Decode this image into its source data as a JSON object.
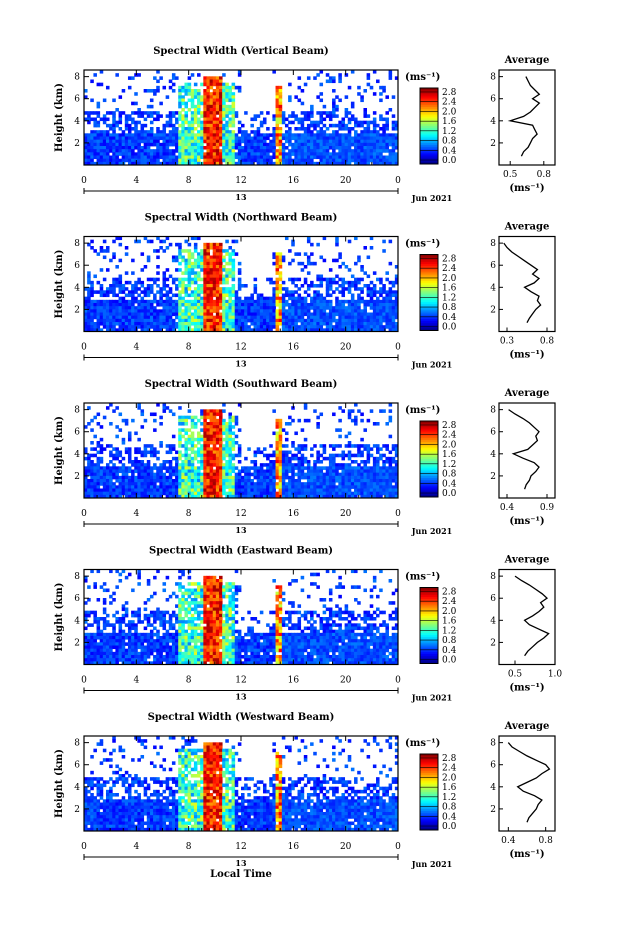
{
  "chart_data": [
    {
      "type": "heatmap",
      "title": "Spectral Width (Vertical Beam)",
      "ylabel": "Height (km)",
      "unit_label": "(ms⁻¹)",
      "xticks": [
        "0",
        "4",
        "8",
        "12",
        "16",
        "20",
        "0"
      ],
      "day_label": "13",
      "date_label": "Jun 2021",
      "colorbar_ticks": [
        "2.8",
        "2.4",
        "2.0",
        "1.6",
        "1.2",
        "0.8",
        "0.4",
        "0.0"
      ],
      "profile": {
        "title": "Average",
        "xlabel": "(ms⁻¹)",
        "xticks": [
          "0.5",
          "0.8"
        ],
        "xlim": [
          0.4,
          0.9
        ],
        "yticks": [
          "2",
          "4",
          "6",
          "8"
        ],
        "height_km": [
          0.8,
          1.2,
          1.6,
          2.0,
          2.4,
          2.8,
          3.2,
          3.6,
          4.0,
          4.4,
          4.8,
          5.2,
          5.6,
          6.0,
          6.4,
          6.8,
          7.2,
          7.6,
          8.0
        ],
        "values": [
          0.6,
          0.62,
          0.66,
          0.68,
          0.7,
          0.74,
          0.72,
          0.7,
          0.5,
          0.62,
          0.68,
          0.72,
          0.76,
          0.7,
          0.76,
          0.72,
          0.68,
          0.66,
          0.64
        ]
      }
    },
    {
      "type": "heatmap",
      "title": "Spectral Width (Northward Beam)",
      "ylabel": "Height (km)",
      "unit_label": "(ms⁻¹)",
      "xticks": [
        "0",
        "4",
        "8",
        "12",
        "16",
        "20",
        "0"
      ],
      "day_label": "13",
      "date_label": "Jun 2021",
      "colorbar_ticks": [
        "2.8",
        "2.4",
        "2.0",
        "1.6",
        "1.2",
        "0.8",
        "0.4",
        "0.0"
      ],
      "profile": {
        "title": "Average",
        "xlabel": "(ms⁻¹)",
        "xticks": [
          "0.3",
          "0.8"
        ],
        "xlim": [
          0.2,
          0.9
        ],
        "yticks": [
          "2",
          "4",
          "6",
          "8"
        ],
        "height_km": [
          0.8,
          1.2,
          1.6,
          2.0,
          2.4,
          2.8,
          3.2,
          3.6,
          4.0,
          4.4,
          4.8,
          5.2,
          5.6,
          6.0,
          6.4,
          6.8,
          7.2,
          7.6,
          8.0
        ],
        "values": [
          0.55,
          0.58,
          0.62,
          0.66,
          0.72,
          0.68,
          0.7,
          0.6,
          0.52,
          0.64,
          0.7,
          0.62,
          0.68,
          0.6,
          0.52,
          0.44,
          0.36,
          0.3,
          0.26
        ]
      }
    },
    {
      "type": "heatmap",
      "title": "Spectral Width (Southward Beam)",
      "ylabel": "Height (km)",
      "unit_label": "(ms⁻¹)",
      "xticks": [
        "0",
        "4",
        "8",
        "12",
        "16",
        "20",
        "0"
      ],
      "day_label": "13",
      "date_label": "Jun 2021",
      "colorbar_ticks": [
        "2.8",
        "2.4",
        "2.0",
        "1.6",
        "1.2",
        "0.8",
        "0.4",
        "0.0"
      ],
      "profile": {
        "title": "Average",
        "xlabel": "(ms⁻¹)",
        "xticks": [
          "0.4",
          "0.9"
        ],
        "xlim": [
          0.3,
          1.0
        ],
        "yticks": [
          "2",
          "4",
          "6",
          "8"
        ],
        "height_km": [
          0.8,
          1.2,
          1.6,
          2.0,
          2.4,
          2.8,
          3.2,
          3.6,
          4.0,
          4.4,
          4.8,
          5.2,
          5.6,
          6.0,
          6.4,
          6.8,
          7.2,
          7.6,
          8.0
        ],
        "values": [
          0.62,
          0.64,
          0.68,
          0.7,
          0.76,
          0.8,
          0.74,
          0.6,
          0.48,
          0.66,
          0.72,
          0.78,
          0.76,
          0.8,
          0.74,
          0.68,
          0.6,
          0.5,
          0.42
        ]
      }
    },
    {
      "type": "heatmap",
      "title": "Spectral Width (Eastward Beam)",
      "ylabel": "Height (km)",
      "unit_label": "(ms⁻¹)",
      "xticks": [
        "0",
        "4",
        "8",
        "12",
        "16",
        "20",
        "0"
      ],
      "day_label": "13",
      "date_label": "Jun 2021",
      "colorbar_ticks": [
        "2.8",
        "2.4",
        "2.0",
        "1.6",
        "1.2",
        "0.8",
        "0.4",
        "0.0"
      ],
      "profile": {
        "title": "Average",
        "xlabel": "(ms⁻¹)",
        "xticks": [
          "0.5",
          "1.0"
        ],
        "xlim": [
          0.3,
          1.0
        ],
        "yticks": [
          "2",
          "4",
          "6",
          "8"
        ],
        "height_km": [
          0.8,
          1.2,
          1.6,
          2.0,
          2.4,
          2.8,
          3.2,
          3.6,
          4.0,
          4.4,
          4.8,
          5.2,
          5.6,
          6.0,
          6.4,
          6.8,
          7.2,
          7.6,
          8.0
        ],
        "values": [
          0.62,
          0.66,
          0.72,
          0.78,
          0.86,
          0.92,
          0.8,
          0.68,
          0.62,
          0.72,
          0.8,
          0.86,
          0.82,
          0.9,
          0.84,
          0.76,
          0.68,
          0.58,
          0.5
        ]
      }
    },
    {
      "type": "heatmap",
      "title": "Spectral Width (Westward Beam)",
      "ylabel": "Height (km)",
      "xlabel": "Local Time",
      "unit_label": "(ms⁻¹)",
      "xticks": [
        "0",
        "4",
        "8",
        "12",
        "16",
        "20",
        "0"
      ],
      "day_label": "13",
      "date_label": "Jun 2021",
      "colorbar_ticks": [
        "2.8",
        "2.4",
        "2.0",
        "1.6",
        "1.2",
        "0.8",
        "0.4",
        "0.0"
      ],
      "profile": {
        "title": "Average",
        "xlabel": "(ms⁻¹)",
        "xticks": [
          "0.4",
          "0.8"
        ],
        "xlim": [
          0.3,
          0.9
        ],
        "yticks": [
          "2",
          "4",
          "6",
          "8"
        ],
        "height_km": [
          0.8,
          1.2,
          1.6,
          2.0,
          2.4,
          2.8,
          3.2,
          3.6,
          4.0,
          4.4,
          4.8,
          5.2,
          5.6,
          6.0,
          6.4,
          6.8,
          7.2,
          7.6,
          8.0
        ],
        "values": [
          0.6,
          0.62,
          0.66,
          0.7,
          0.72,
          0.76,
          0.68,
          0.56,
          0.5,
          0.6,
          0.7,
          0.76,
          0.84,
          0.8,
          0.7,
          0.6,
          0.52,
          0.44,
          0.4
        ]
      }
    }
  ]
}
